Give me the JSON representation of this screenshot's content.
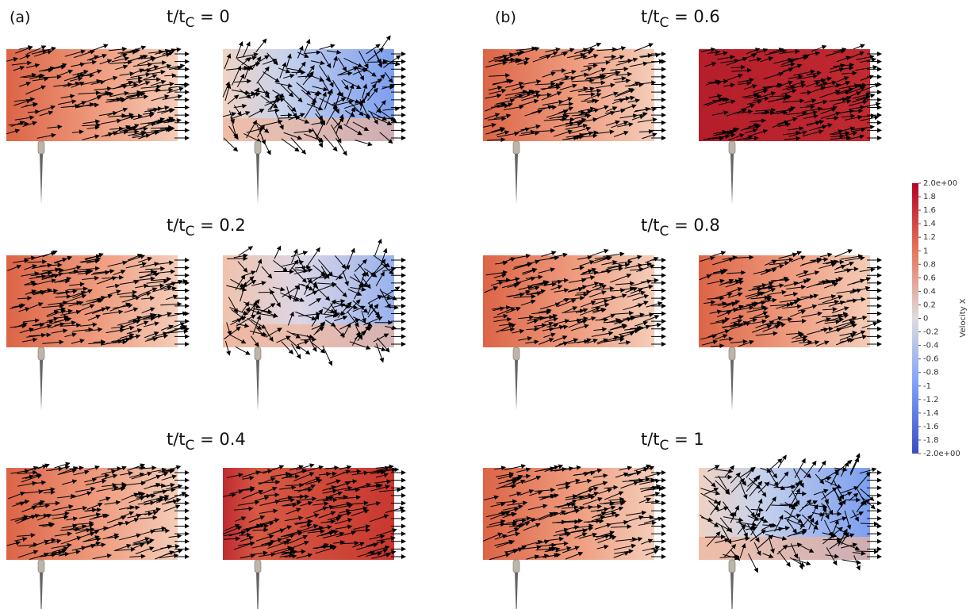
{
  "panel_labels": [
    "(a)",
    "(b)"
  ],
  "time_labels": [
    {
      "base": "t/t",
      "subscript": "C",
      "rest": " = 0"
    },
    {
      "base": "t/t",
      "subscript": "C",
      "rest": " = 0.2"
    },
    {
      "base": "t/t",
      "subscript": "C",
      "rest": " = 0.4"
    },
    {
      "base": "t/t",
      "subscript": "C",
      "rest": " = 0.6"
    },
    {
      "base": "t/t",
      "subscript": "C",
      "rest": " = 0.8"
    },
    {
      "base": "t/t",
      "subscript": "C",
      "rest": " = 1"
    }
  ],
  "colorbar": {
    "title": "Velocity X",
    "ticks": [
      "2.0e+00",
      "1.8",
      "1.6",
      "1.4",
      "1.2",
      "1",
      "0.8",
      "0.6",
      "0.4",
      "0.2",
      "0",
      "-0.2",
      "-0.4",
      "-0.6",
      "-0.8",
      "-1",
      "-1.2",
      "-1.4",
      "-1.6",
      "-1.8",
      "-2.0e+00"
    ]
  }
}
